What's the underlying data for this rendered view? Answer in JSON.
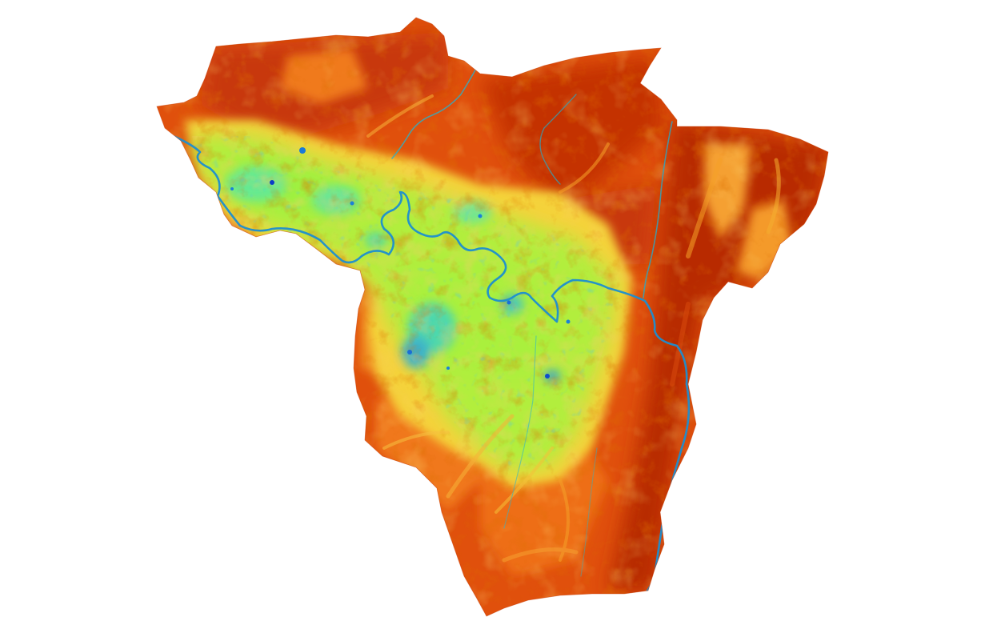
{
  "map": {
    "background_color": "#ffffff",
    "color_ramp": [
      "#0a3cc8",
      "#19a6e0",
      "#2fe0b4",
      "#a8f03c",
      "#f5e83a",
      "#f5a623",
      "#f07418",
      "#e04a0a",
      "#b82a00"
    ],
    "dominant_colors": {
      "uplands": "#e0500c",
      "valley_floor": "#b4f03a",
      "water": "#1a8ad8",
      "high_ridges": "#b82a00"
    }
  }
}
